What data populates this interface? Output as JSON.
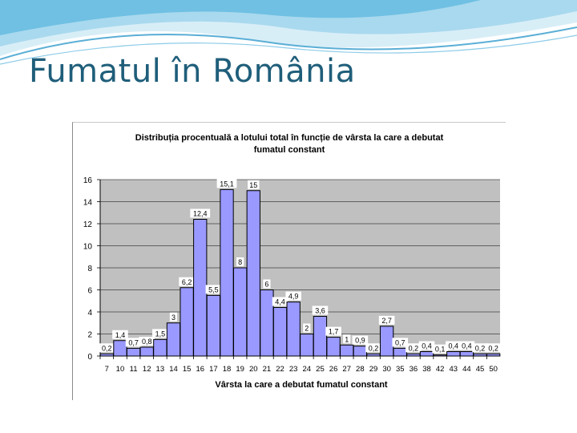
{
  "slide": {
    "title": "Fumatul în România"
  },
  "chart_data": {
    "type": "bar",
    "title": "Distribuția procentuală a lotului total în funcție de vârsta la care a debutat fumatul constant",
    "title_lines": [
      "Distribuția procentuală a lotului total în funcție de vârsta la care a debutat",
      "fumatul constant"
    ],
    "xlabel": "Vârsta la care a debutat fumatul constant",
    "ylabel": "",
    "categories": [
      "7",
      "10",
      "11",
      "12",
      "13",
      "14",
      "15",
      "16",
      "17",
      "18",
      "19",
      "20",
      "21",
      "22",
      "23",
      "24",
      "25",
      "26",
      "27",
      "28",
      "29",
      "30",
      "35",
      "36",
      "38",
      "42",
      "43",
      "44",
      "45",
      "50"
    ],
    "values": [
      0.2,
      1.4,
      0.7,
      0.8,
      1.5,
      3,
      6.2,
      12.4,
      5.5,
      15.1,
      8,
      15,
      6,
      4.4,
      4.9,
      2,
      3.6,
      1.7,
      1,
      0.9,
      0.2,
      2.7,
      0.7,
      0.2,
      0.4,
      0.1,
      0.4,
      0.4,
      0.2,
      0.2
    ],
    "data_labels": [
      "0,2",
      "1,4",
      "0,7",
      "0,8",
      "1,5",
      "3",
      "6,2",
      "12,4",
      "5,5",
      "15,1",
      "8",
      "15",
      "6",
      "4,4",
      "4,9",
      "2",
      "3,6",
      "1,7",
      "1",
      "0,9",
      "0,2",
      "2,7",
      "0,7",
      "0,2",
      "0,4",
      "0,1",
      "0,4",
      "0,4",
      "0,2",
      "0,2"
    ],
    "ylim": [
      0,
      16
    ],
    "yticks": [
      "0",
      "2",
      "4",
      "6",
      "8",
      "10",
      "12",
      "14",
      "16"
    ],
    "grid": true,
    "legend": "none",
    "colors": {
      "bar_fill": "#9999ff",
      "bar_stroke": "#000000",
      "plot_bg": "#c0c0c0",
      "gridline": "#000000",
      "label_bg": "#ffffff"
    }
  }
}
